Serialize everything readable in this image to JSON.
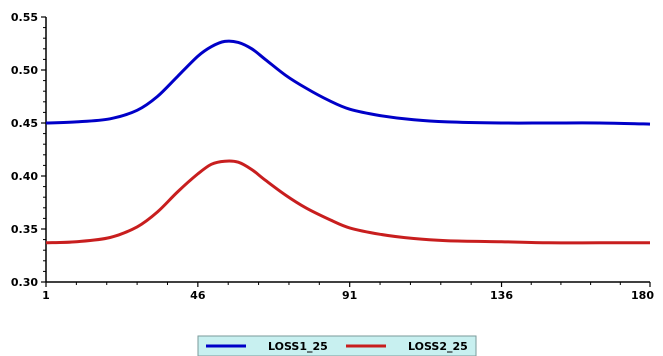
{
  "chart_data": {
    "type": "line",
    "x_ticks": [
      1,
      46,
      91,
      136,
      180
    ],
    "xlim": [
      1,
      180
    ],
    "ylim": [
      0.3,
      0.55
    ],
    "y_ticks": [
      0.3,
      0.35,
      0.4,
      0.45,
      0.5,
      0.55
    ],
    "y_tick_labels": [
      "0.30",
      "0.35",
      "0.40",
      "0.45",
      "0.50",
      "0.55"
    ],
    "grid": false,
    "legend_placement": "bottom-center",
    "legend_background": "#c8f0f0",
    "series": [
      {
        "name": "LOSS1_25",
        "color": "#0000c8",
        "x": [
          1,
          10,
          20,
          28,
          34,
          40,
          46,
          50,
          54,
          58,
          62,
          66,
          72,
          78,
          85,
          91,
          100,
          110,
          120,
          136,
          150,
          165,
          180
        ],
        "values": [
          0.45,
          0.451,
          0.454,
          0.462,
          0.475,
          0.494,
          0.513,
          0.522,
          0.527,
          0.526,
          0.52,
          0.51,
          0.495,
          0.483,
          0.471,
          0.463,
          0.457,
          0.453,
          0.451,
          0.45,
          0.45,
          0.45,
          0.449
        ]
      },
      {
        "name": "LOSS2_25",
        "color": "#c81e1e",
        "x": [
          1,
          10,
          20,
          28,
          34,
          40,
          46,
          50,
          54,
          58,
          62,
          66,
          72,
          78,
          85,
          91,
          100,
          110,
          120,
          136,
          150,
          165,
          180
        ],
        "values": [
          0.337,
          0.338,
          0.342,
          0.352,
          0.366,
          0.385,
          0.402,
          0.411,
          0.414,
          0.413,
          0.406,
          0.396,
          0.382,
          0.37,
          0.359,
          0.351,
          0.345,
          0.341,
          0.339,
          0.338,
          0.337,
          0.337,
          0.337
        ]
      }
    ]
  }
}
